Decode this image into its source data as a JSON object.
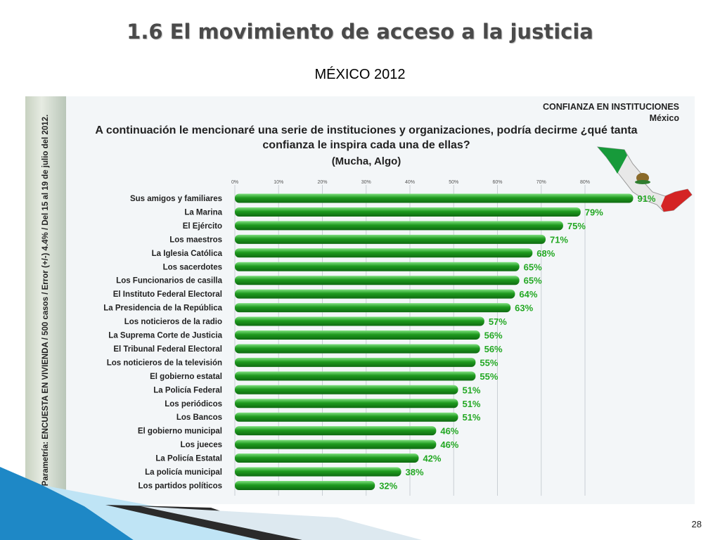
{
  "slide": {
    "title": "1.6 El movimiento de acceso a la justicia",
    "subtitle": "MÉXICO 2012",
    "page_number": "28"
  },
  "panel": {
    "side_text": "Parametría: ENCUESTA EN VIVIENDA / 500 casos / Error (+/-) 4.4% / Del 15 al 19 de julio del 2012.",
    "brand_title": "CONFIANZA EN INSTITUCIONES",
    "brand_sub": "México",
    "question": "A continuación le mencionaré una serie de instituciones y organizaciones, podría decirme ¿qué tanta confianza le inspira cada una de ellas?",
    "parenthetical": "(Mucha, Algo)"
  },
  "colors": {
    "bar": "#1e9a1e",
    "bar_highlight": "#7fe07f",
    "bar_label": "#23a823"
  },
  "chart_data": {
    "type": "bar",
    "orientation": "horizontal",
    "categories": [
      "Sus amigos y familiares",
      "La Marina",
      "El Ejército",
      "Los maestros",
      "La Iglesia Católica",
      "Los sacerdotes",
      "Los Funcionarios de casilla",
      "El Instituto Federal Electoral",
      "La Presidencia de la República",
      "Los noticieros de la radio",
      "La Suprema Corte de Justicia",
      "El Tribunal Federal Electoral",
      "Los noticieros de la televisión",
      "El gobierno estatal",
      "La Policía Federal",
      "Los periódicos",
      "Los Bancos",
      "El gobierno municipal",
      "Los jueces",
      "La Policía Estatal",
      "La policía municipal",
      "Los partidos políticos"
    ],
    "values": [
      91,
      79,
      75,
      71,
      68,
      65,
      65,
      64,
      63,
      57,
      56,
      56,
      55,
      55,
      51,
      51,
      51,
      46,
      46,
      42,
      38,
      32
    ],
    "value_labels": [
      "91%",
      "79%",
      "75%",
      "71%",
      "68%",
      "65%",
      "65%",
      "64%",
      "63%",
      "57%",
      "56%",
      "56%",
      "55%",
      "55%",
      "51%",
      "51%",
      "51%",
      "46%",
      "46%",
      "42%",
      "38%",
      "32%"
    ],
    "x_ticks": [
      "0%",
      "10%",
      "20%",
      "30%",
      "40%",
      "50%",
      "60%",
      "70%",
      "80%"
    ],
    "xlim": [
      0,
      80
    ],
    "grid": true
  }
}
